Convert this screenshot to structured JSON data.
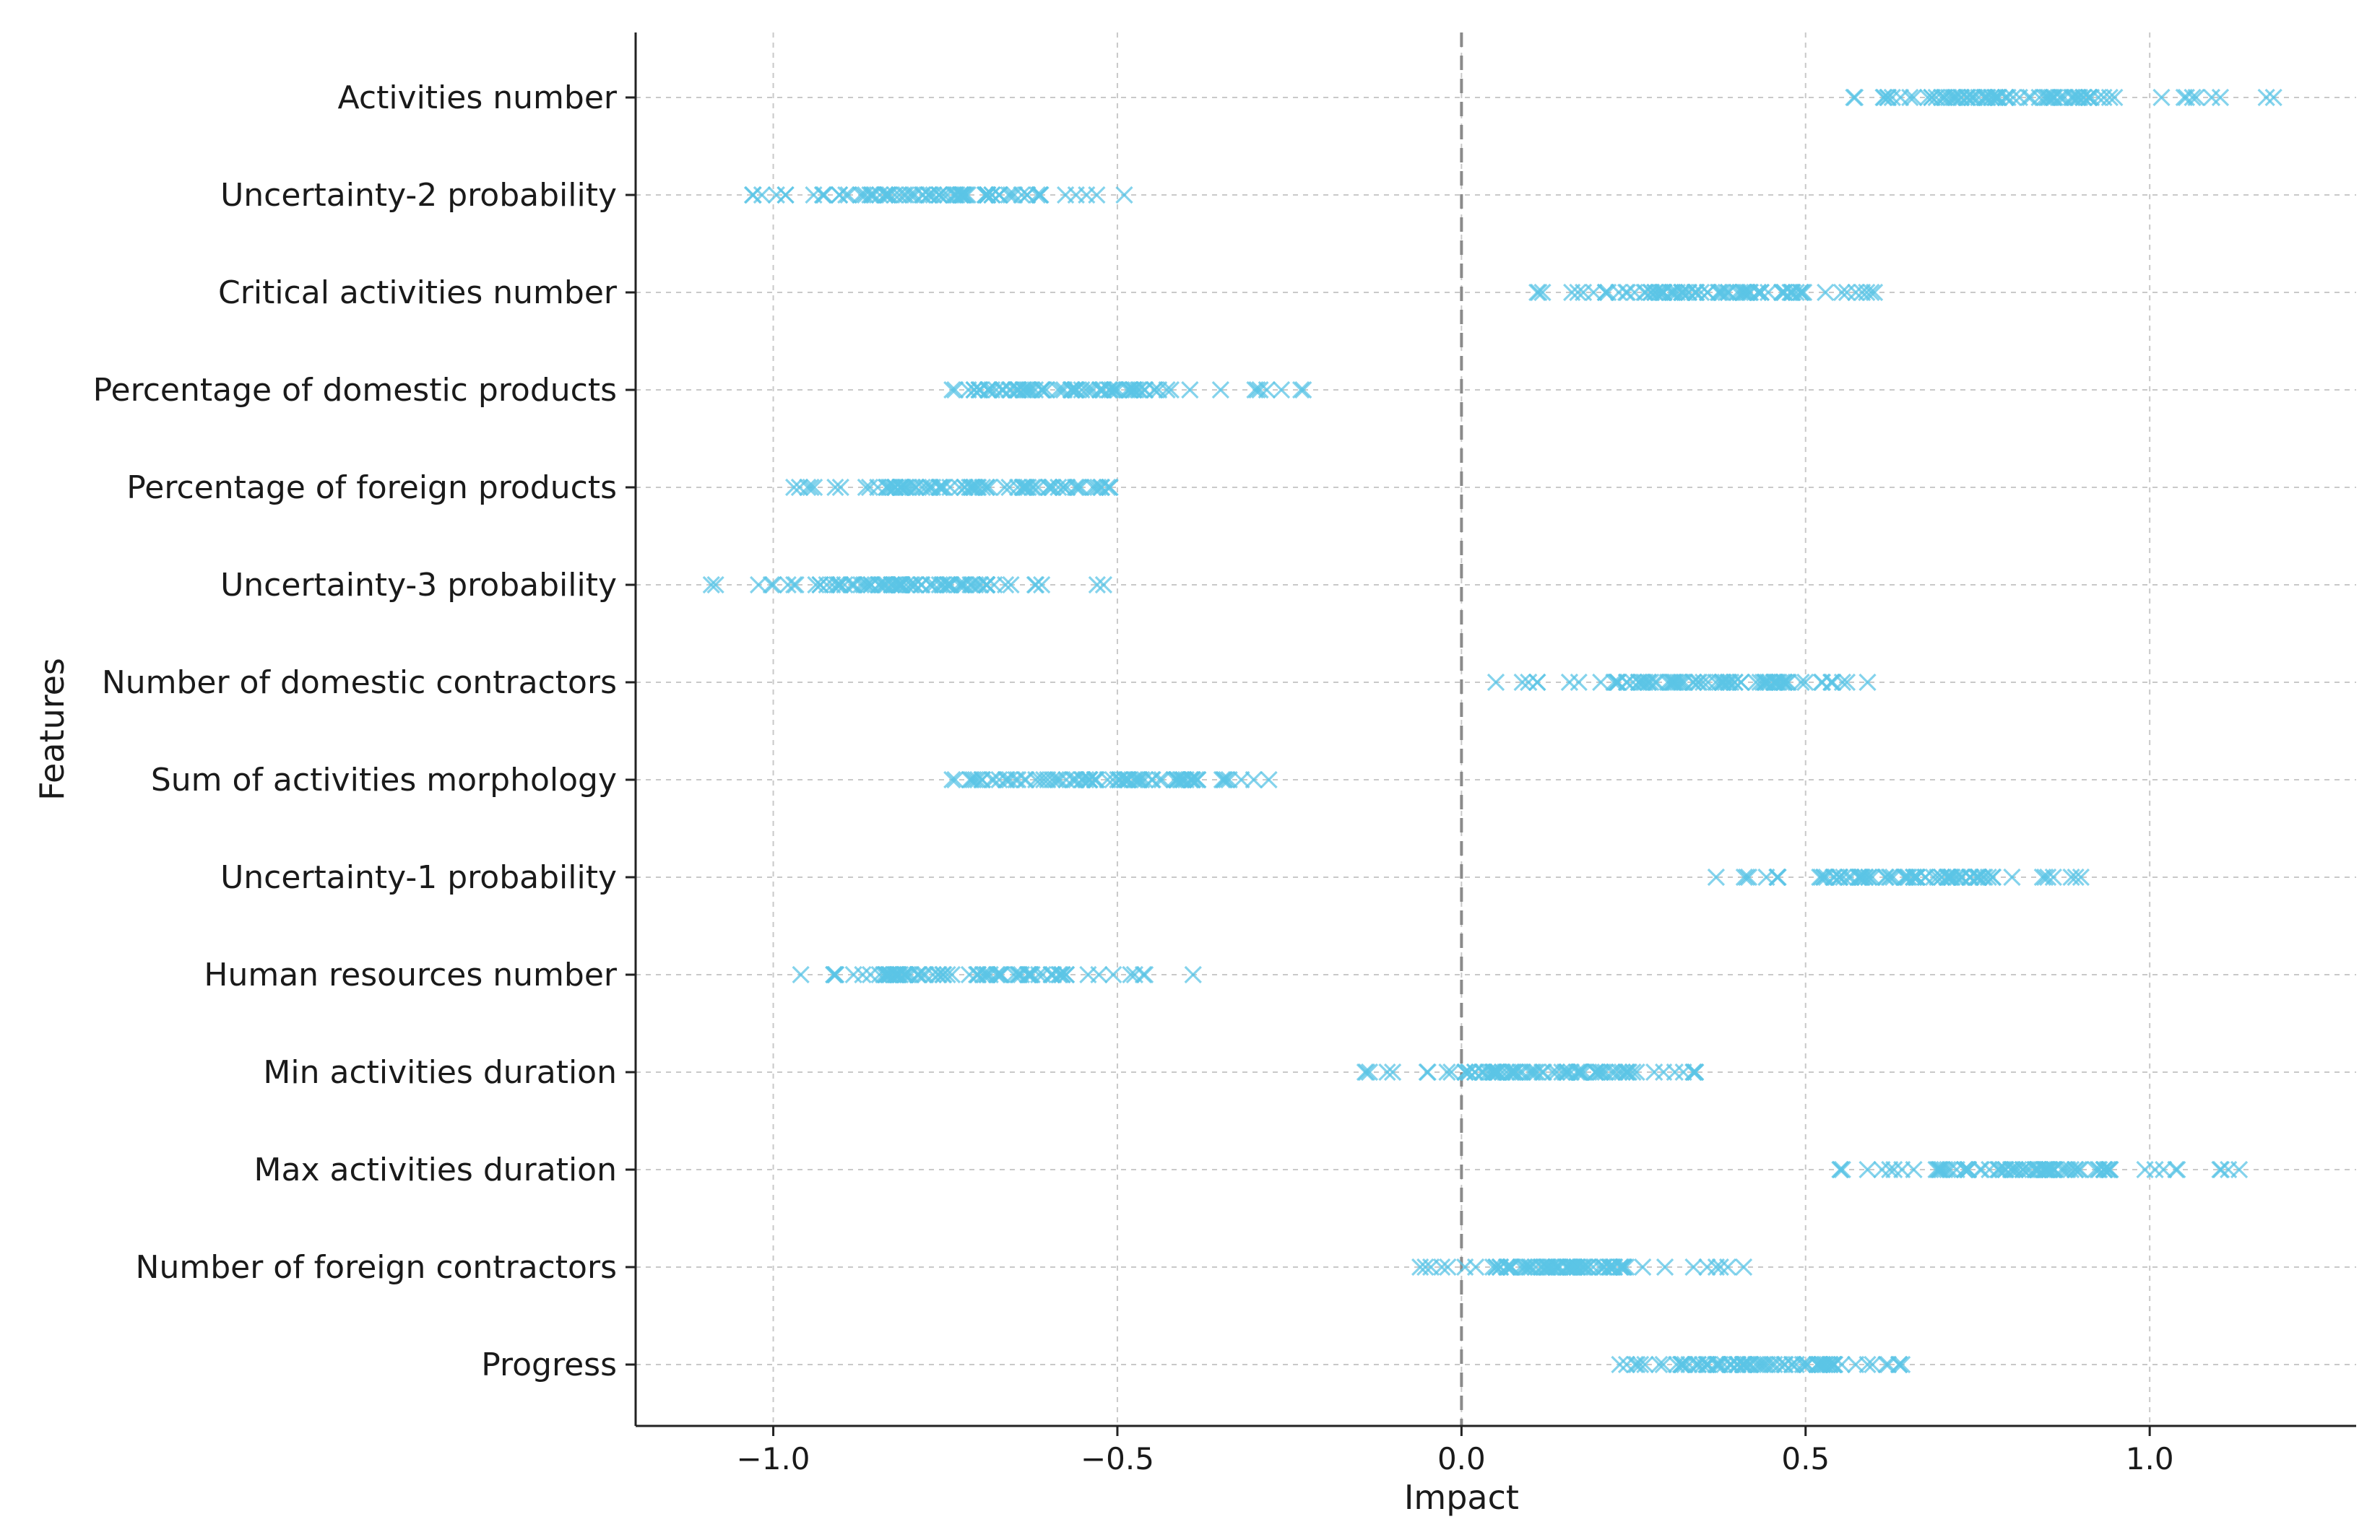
{
  "chart_data": {
    "type": "scatter",
    "title": "",
    "xlabel": "Impact",
    "ylabel": "Features",
    "xlim": [
      -1.2,
      1.3
    ],
    "xticks": [
      -1.0,
      -0.5,
      0.0,
      0.5,
      1.0
    ],
    "xtick_labels": [
      "−1.0",
      "−0.5",
      "0.0",
      "0.5",
      "1.0"
    ],
    "grid": true,
    "reference_line_x": 0.0,
    "marker": "x",
    "marker_color": "#5bc4e6",
    "features": [
      {
        "name": "Activities number",
        "range": [
          0.57,
          1.18
        ],
        "dense": [
          0.65,
          0.95
        ],
        "outliers": [
          0.57,
          0.62,
          1.05,
          1.09,
          1.18
        ]
      },
      {
        "name": "Uncertainty-2 probability",
        "range": [
          -1.03,
          -0.49
        ],
        "dense": [
          -0.93,
          -0.63
        ],
        "outliers": [
          -1.03,
          -0.56,
          -0.53,
          -0.49
        ]
      },
      {
        "name": "Critical activities number",
        "range": [
          0.11,
          0.6
        ],
        "dense": [
          0.2,
          0.5
        ],
        "outliers": [
          0.11,
          0.56,
          0.6
        ]
      },
      {
        "name": "Percentage of domestic products",
        "range": [
          -0.74,
          -0.23
        ],
        "dense": [
          -0.7,
          -0.42
        ],
        "outliers": [
          -0.74,
          -0.35,
          -0.3,
          -0.23
        ]
      },
      {
        "name": "Percentage of foreign products",
        "range": [
          -0.97,
          -0.51
        ],
        "dense": [
          -0.84,
          -0.53
        ],
        "outliers": [
          -0.97,
          -0.95,
          -0.91,
          -0.86
        ]
      },
      {
        "name": "Uncertainty-3 probability",
        "range": [
          -1.09,
          -0.52
        ],
        "dense": [
          -0.94,
          -0.68
        ],
        "outliers": [
          -1.09,
          -1.0,
          -0.61,
          -0.52
        ]
      },
      {
        "name": "Number of domestic contractors",
        "range": [
          0.05,
          0.59
        ],
        "dense": [
          0.22,
          0.5
        ],
        "outliers": [
          0.05,
          0.11,
          0.56,
          0.59
        ]
      },
      {
        "name": "Sum of activities morphology",
        "range": [
          -0.74,
          -0.28
        ],
        "dense": [
          -0.7,
          -0.38
        ],
        "outliers": [
          -0.74,
          -0.32,
          -0.28
        ]
      },
      {
        "name": "Uncertainty-1 probability",
        "range": [
          0.37,
          0.9
        ],
        "dense": [
          0.52,
          0.78
        ],
        "outliers": [
          0.37,
          0.46,
          0.86,
          0.9
        ]
      },
      {
        "name": "Human resources number",
        "range": [
          -0.96,
          -0.39
        ],
        "dense": [
          -0.84,
          -0.55
        ],
        "outliers": [
          -0.96,
          -0.91,
          -0.87,
          -0.46,
          -0.39
        ]
      },
      {
        "name": "Min activities duration",
        "range": [
          -0.14,
          0.34
        ],
        "dense": [
          0.0,
          0.26
        ],
        "outliers": [
          -0.14,
          -0.1,
          -0.05,
          0.31,
          0.34
        ]
      },
      {
        "name": "Max activities duration",
        "range": [
          0.55,
          1.13
        ],
        "dense": [
          0.68,
          0.95
        ],
        "outliers": [
          0.55,
          0.59,
          0.64,
          1.02,
          1.04,
          1.13
        ]
      },
      {
        "name": "Number of foreign contractors",
        "range": [
          -0.06,
          0.41
        ],
        "dense": [
          0.05,
          0.25
        ],
        "outliers": [
          -0.06,
          -0.02,
          0.37,
          0.41
        ]
      },
      {
        "name": "Progress",
        "range": [
          0.23,
          0.64
        ],
        "dense": [
          0.3,
          0.55
        ],
        "outliers": [
          0.23,
          0.26,
          0.59,
          0.62,
          0.64
        ]
      }
    ]
  }
}
